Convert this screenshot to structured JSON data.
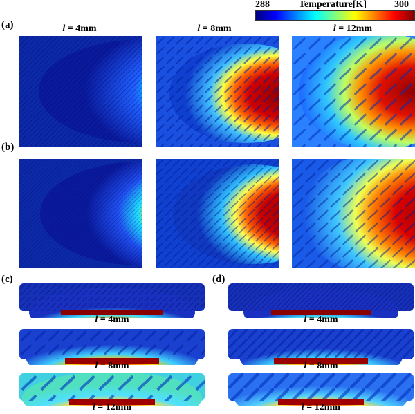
{
  "colorbar": {
    "min": "288",
    "max": "300",
    "title": "Temperature[K]",
    "colors": [
      "#00007f",
      "#0000ff",
      "#007fff",
      "#00ffff",
      "#7fff7f",
      "#ffff00",
      "#ff7f00",
      "#ff0000",
      "#7f0000"
    ]
  },
  "panels": {
    "a": "(a)",
    "b": "(b)",
    "c": "(c)",
    "d": "(d)"
  },
  "columns": [
    {
      "l": "l",
      "eq": " = 4mm"
    },
    {
      "l": "l",
      "eq": " = 8mm"
    },
    {
      "l": "l",
      "eq": " = 12mm"
    }
  ],
  "strips_c": [
    {
      "l": "l",
      "eq": " = 4mm"
    },
    {
      "l": "l",
      "eq": " = 8mm"
    },
    {
      "l": "l",
      "eq": " = 12mm"
    }
  ],
  "strips_d": [
    {
      "l": "l",
      "eq": " = 4mm"
    },
    {
      "l": "l",
      "eq": " = 8mm"
    },
    {
      "l": "l",
      "eq": " = 12mm"
    }
  ]
}
